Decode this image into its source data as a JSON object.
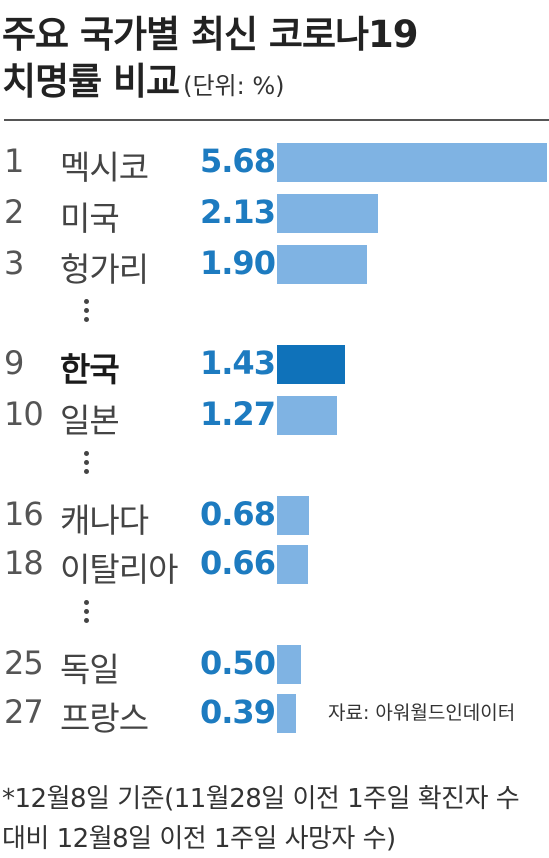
{
  "title_line1": "주요 국가별 최신 코로나19",
  "title_line2": "치명률 비교",
  "unit": "(단위: %)",
  "source": "자료: 아워월드인데이터",
  "note_line1": "*12월8일 기준(11월28일 이전 1주일 확진자 수",
  "note_line2": "대비 12월8일 이전 1주일 사망자 수)",
  "colors": {
    "bar": "#7fb3e3",
    "bar_highlight": "#0f72ba",
    "value": "#1d7bc0"
  },
  "chart_data": {
    "type": "bar",
    "orientation": "horizontal",
    "title": "주요 국가별 최신 코로나19 치명률 비교",
    "unit": "%",
    "highlight": "한국",
    "rows": [
      {
        "rank": "1",
        "country": "멕시코",
        "value": 5.68,
        "label": "5.68"
      },
      {
        "rank": "2",
        "country": "미국",
        "value": 2.13,
        "label": "2.13"
      },
      {
        "rank": "3",
        "country": "헝가리",
        "value": 1.9,
        "label": "1.90"
      },
      {
        "rank": "9",
        "country": "한국",
        "value": 1.43,
        "label": "1.43"
      },
      {
        "rank": "10",
        "country": "일본",
        "value": 1.27,
        "label": "1.27"
      },
      {
        "rank": "16",
        "country": "캐나다",
        "value": 0.68,
        "label": "0.68"
      },
      {
        "rank": "18",
        "country": "이탈리아",
        "value": 0.66,
        "label": "0.66"
      },
      {
        "rank": "25",
        "country": "독일",
        "value": 0.5,
        "label": "0.50"
      },
      {
        "rank": "27",
        "country": "프랑스",
        "value": 0.39,
        "label": "0.39"
      }
    ]
  }
}
